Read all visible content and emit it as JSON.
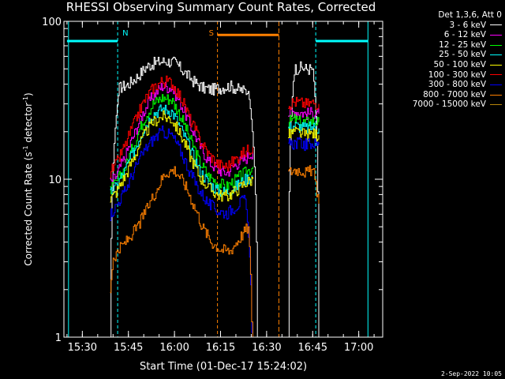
{
  "chart_data": {
    "type": "line",
    "title": "RHESSI Observing Summary Count Rates, Corrected",
    "xlabel": "Start Time (01-Dec-17 15:24:02)",
    "ylabel": "Corrected Count Rate (s",
    "ylabel_sup": "-1",
    "ylabel_mid": " detector",
    "ylabel_sup2": "-1",
    "ylabel_end": ")",
    "yscale": "log",
    "xlim_min": [
      15.4,
      17.13
    ],
    "ylim": [
      1,
      100
    ],
    "x_ticks": [
      "15:30",
      "15:45",
      "16:00",
      "16:15",
      "16:30",
      "16:45",
      "17:00"
    ],
    "x_tick_values_min": [
      930,
      945,
      960,
      975,
      990,
      1005,
      1020
    ],
    "y_ticks": [
      "1",
      "10",
      "100"
    ],
    "y_tick_values": [
      1,
      10,
      100
    ],
    "legend_title": "Det 1,3,6, Att 0",
    "series": [
      {
        "name": "3 - 6 keV",
        "color": "#ffffff",
        "segments": [
          {
            "x": [
              939,
              942,
              945,
              948,
              951,
              954,
              957,
              960,
              963,
              966,
              969,
              972,
              975,
              978,
              981,
              984,
              987
            ],
            "y": [
              0,
              38,
              40,
              45,
              52,
              55,
              56,
              55,
              48,
              42,
              38,
              37,
              38,
              39,
              37,
              36,
              0
            ]
          },
          {
            "x": [
              997,
              999,
              1001,
              1003,
              1005,
              1007
            ],
            "y": [
              0,
              50,
              51,
              50,
              50,
              0
            ]
          }
        ]
      },
      {
        "name": "6 - 12 keV",
        "color": "#ff00ff",
        "segments": [
          {
            "x": [
              939,
              941,
              944,
              947,
              950,
              953,
              956,
              959,
              962,
              965,
              968,
              971,
              974,
              977,
              980,
              983,
              985.5
            ],
            "y": [
              9.5,
              10.5,
              14,
              19.5,
              27,
              34,
              39,
              38,
              30,
              22,
              16.5,
              13,
              11.5,
              11,
              12.5,
              13.5,
              15
            ]
          },
          {
            "x": [
              997,
              999,
              1001,
              1003,
              1005,
              1007
            ],
            "y": [
              26,
              27,
              26.5,
              26,
              26.5,
              26
            ]
          }
        ]
      },
      {
        "name": "12 - 25 keV",
        "color": "#00ff00",
        "segments": [
          {
            "x": [
              939,
              941,
              944,
              947,
              950,
              953,
              956,
              959,
              962,
              965,
              968,
              971,
              974,
              977,
              980,
              983,
              985.5
            ],
            "y": [
              8.5,
              9.5,
              12,
              17,
              24,
              30,
              33,
              32,
              25,
              18,
              13,
              10.5,
              9.5,
              9,
              10,
              11,
              12
            ]
          },
          {
            "x": [
              997,
              999,
              1001,
              1003,
              1005,
              1007
            ],
            "y": [
              23,
              24,
              23,
              23,
              23.5,
              23
            ]
          }
        ]
      },
      {
        "name": "25 - 50 keV",
        "color": "#00ffff",
        "segments": [
          {
            "x": [
              939,
              941,
              944,
              947,
              950,
              953,
              956,
              959,
              962,
              965,
              968,
              971,
              974,
              977,
              980,
              983,
              985.5
            ],
            "y": [
              8,
              9,
              11.5,
              15.5,
              21,
              26,
              28,
              27,
              21,
              15.5,
              11.5,
              9.5,
              8.5,
              8.3,
              9,
              10,
              10.5
            ]
          },
          {
            "x": [
              997,
              999,
              1001,
              1003,
              1005,
              1007
            ],
            "y": [
              21,
              22,
              21.5,
              21,
              21.5,
              21
            ]
          }
        ]
      },
      {
        "name": "50 - 100 keV",
        "color": "#ffff00",
        "segments": [
          {
            "x": [
              939,
              941,
              944,
              947,
              950,
              953,
              956,
              959,
              962,
              965,
              968,
              971,
              974,
              977,
              980,
              983,
              985.5
            ],
            "y": [
              7.5,
              8.3,
              10.5,
              14,
              19,
              23,
              25,
              24,
              19,
              14,
              10.5,
              8.8,
              8,
              7.8,
              8.5,
              9.5,
              10
            ]
          },
          {
            "x": [
              997,
              999,
              1001,
              1003,
              1005,
              1007
            ],
            "y": [
              19,
              20,
              19.5,
              19,
              19.5,
              19
            ]
          }
        ]
      },
      {
        "name": "100 - 300 keV",
        "color": "#ff0000",
        "segments": [
          {
            "x": [
              939,
              941,
              944,
              947,
              950,
              953,
              956,
              959,
              962,
              965,
              968,
              971,
              974,
              977,
              980,
              983,
              985.5
            ],
            "y": [
              11,
              12.5,
              16.5,
              23,
              31,
              38,
              42,
              41,
              33,
              24,
              18,
              14.5,
              12.5,
              12,
              13.5,
              15,
              16
            ]
          },
          {
            "x": [
              997,
              999,
              1001,
              1003,
              1005,
              1007
            ],
            "y": [
              30,
              31,
              30.5,
              30,
              30.5,
              30
            ]
          }
        ]
      },
      {
        "name": "300 - 800 keV",
        "color": "#0000ff",
        "segments": [
          {
            "x": [
              939,
              941,
              944,
              947,
              950,
              953,
              956,
              959,
              962,
              965,
              968,
              971,
              974,
              977,
              980,
              983,
              985.5
            ],
            "y": [
              6,
              6.8,
              8.5,
              11.5,
              15,
              18,
              20,
              19,
              15,
              11,
              8.5,
              7,
              6.3,
              6.1,
              6.8,
              7.5,
              0
            ]
          },
          {
            "x": [
              997,
              999,
              1001,
              1003,
              1005,
              1007
            ],
            "y": [
              16.5,
              17,
              17,
              16.5,
              17,
              16.5
            ]
          }
        ]
      },
      {
        "name": "800 - 7000 keV",
        "color": "#ff8000",
        "segments": [
          {
            "x": [
              939,
              940,
              942,
              945,
              948,
              951,
              954,
              957,
              960,
              963,
              966,
              969,
              972,
              975,
              978,
              981,
              984,
              985.5
            ],
            "y": [
              2,
              3.2,
              3.6,
              4.2,
              5,
              6.5,
              8.5,
              11,
              11.5,
              9.5,
              7,
              5,
              4,
              3.6,
              3.5,
              4.2,
              5,
              0
            ]
          },
          {
            "x": [
              997,
              999,
              1001,
              1003,
              1005,
              1007
            ],
            "y": [
              11,
              11.5,
              11.5,
              11,
              11.5,
              7
            ]
          }
        ]
      },
      {
        "name": "7000 - 15000 keV",
        "color": "#b8860b",
        "segments": []
      }
    ],
    "flags": [
      {
        "label": "N",
        "color": "#00ffff",
        "bar_start": 925,
        "bar_end": 941.5,
        "level": 75,
        "x": 941.5,
        "x2": 1023
      },
      {
        "label": "S",
        "color": "#ff8000",
        "bar_start": 974,
        "bar_end": 994,
        "level": 82,
        "x": 974,
        "x2": 994
      },
      {
        "label": "",
        "color": "#00ffff",
        "bar_start": 1006,
        "bar_end": 1023,
        "level": 75,
        "x": 1006,
        "x2": 925.5
      }
    ]
  },
  "stamp": "2-Sep-2022 10:05"
}
